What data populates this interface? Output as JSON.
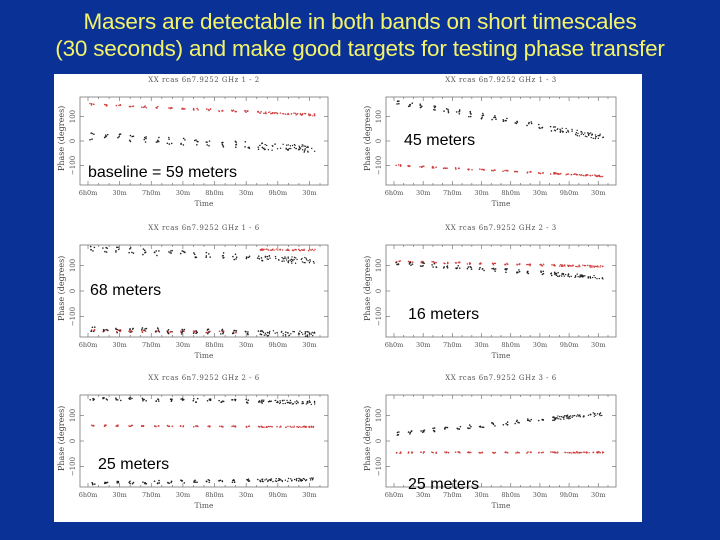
{
  "slide": {
    "title_line1": "Masers are detectable in both bands on short timescales",
    "title_line2": "(30 seconds) and make good targets for testing phase transfer",
    "background_color": "#0a3296",
    "title_color": "#f3f36a"
  },
  "chart_data": [
    {
      "type": "scatter",
      "id": "p1",
      "title": "XX   rcas 6n7.9252 GHz     1 -  2",
      "annotation": "baseline = 59 meters",
      "xlabel": "Time",
      "ylabel": "Phase (degrees)",
      "xticks": [
        "6h0m",
        "30m",
        "7h0m",
        "30m",
        "8h0m",
        "30m",
        "9h0m",
        "30m"
      ],
      "yticks": [
        100,
        0,
        -100
      ],
      "ylim": [
        -180,
        180
      ],
      "series": [
        {
          "name": "red",
          "color": "#d04040",
          "start": 150,
          "end": 105,
          "scatter": 8
        },
        {
          "name": "black",
          "color": "#222222",
          "start": 20,
          "end": -35,
          "scatter": 30
        }
      ]
    },
    {
      "type": "scatter",
      "id": "p2",
      "title": "XX   rcas 6n7.9252 GHz     1 -  3",
      "annotation": "45 meters",
      "xlabel": "Time",
      "ylabel": "Phase (degrees)",
      "xticks": [
        "6h0m",
        "30m",
        "7h0m",
        "30m",
        "8h0m",
        "30m",
        "9h0m",
        "30m"
      ],
      "yticks": [
        100,
        0,
        -100
      ],
      "ylim": [
        -180,
        180
      ],
      "series": [
        {
          "name": "black",
          "color": "#222222",
          "start": 160,
          "end": 10,
          "scatter": 22
        },
        {
          "name": "red",
          "color": "#d04040",
          "start": -100,
          "end": -145,
          "scatter": 6
        }
      ]
    },
    {
      "type": "scatter",
      "id": "p3",
      "title": "XX   rcas 6n7.9252 GHz     1 -  6",
      "annotation": "68 meters",
      "xlabel": "Time",
      "ylabel": "Phase (degrees)",
      "xticks": [
        "6h0m",
        "30m",
        "7h0m",
        "30m",
        "8h0m",
        "30m",
        "9h0m",
        "30m"
      ],
      "yticks": [
        100,
        0,
        -100
      ],
      "ylim": [
        -180,
        180
      ],
      "series": [
        {
          "name": "black-top",
          "color": "#222222",
          "start": 165,
          "end": 115,
          "scatter": 25
        },
        {
          "name": "red-top",
          "color": "#d04040",
          "start": 165,
          "end": 160,
          "scatter": 6,
          "from": 0.72
        },
        {
          "name": "red-bottom",
          "color": "#d04040",
          "start": -155,
          "end": -165,
          "scatter": 8,
          "to": 0.65
        },
        {
          "name": "black-bottom",
          "color": "#222222",
          "start": -150,
          "end": -170,
          "scatter": 22
        }
      ]
    },
    {
      "type": "scatter",
      "id": "p4",
      "title": "XX   rcas 6n7.9252 GHz     2 -  3",
      "annotation": "16 meters",
      "xlabel": "Time",
      "ylabel": "Phase (degrees)",
      "xticks": [
        "6h0m",
        "30m",
        "7h0m",
        "30m",
        "8h0m",
        "30m",
        "9h0m",
        "30m"
      ],
      "yticks": [
        100,
        0,
        -100
      ],
      "ylim": [
        -180,
        180
      ],
      "series": [
        {
          "name": "red",
          "color": "#d04040",
          "start": 115,
          "end": 95,
          "scatter": 7
        },
        {
          "name": "black",
          "color": "#222222",
          "start": 110,
          "end": 50,
          "scatter": 15
        }
      ]
    },
    {
      "type": "scatter",
      "id": "p5",
      "title": "XX   rcas 6n7.9252 GHz     2 -  6",
      "annotation": "25 meters",
      "xlabel": "Time",
      "ylabel": "Phase (degrees)",
      "xticks": [
        "6h0m",
        "30m",
        "7h0m",
        "30m",
        "8h0m",
        "30m",
        "9h0m",
        "30m"
      ],
      "yticks": [
        100,
        0,
        -100
      ],
      "ylim": [
        -180,
        180
      ],
      "series": [
        {
          "name": "black-top",
          "color": "#222222",
          "start": 165,
          "end": 150,
          "scatter": 15
        },
        {
          "name": "red",
          "color": "#d04040",
          "start": 60,
          "end": 55,
          "scatter": 5
        },
        {
          "name": "black-bottom",
          "color": "#222222",
          "start": -165,
          "end": -150,
          "scatter": 12
        }
      ]
    },
    {
      "type": "scatter",
      "id": "p6",
      "title": "XX   rcas 6n7.9252 GHz     3 -  6",
      "annotation": "25 meters",
      "xlabel": "Time",
      "ylabel": "Phase (degrees)",
      "xticks": [
        "6h0m",
        "30m",
        "7h0m",
        "30m",
        "8h0m",
        "30m",
        "9h0m",
        "30m"
      ],
      "yticks": [
        100,
        0,
        -100
      ],
      "ylim": [
        -180,
        180
      ],
      "series": [
        {
          "name": "black",
          "color": "#222222",
          "start": 30,
          "end": 110,
          "scatter": 15
        },
        {
          "name": "red",
          "color": "#d04040",
          "start": -45,
          "end": -45,
          "scatter": 5
        }
      ]
    }
  ]
}
